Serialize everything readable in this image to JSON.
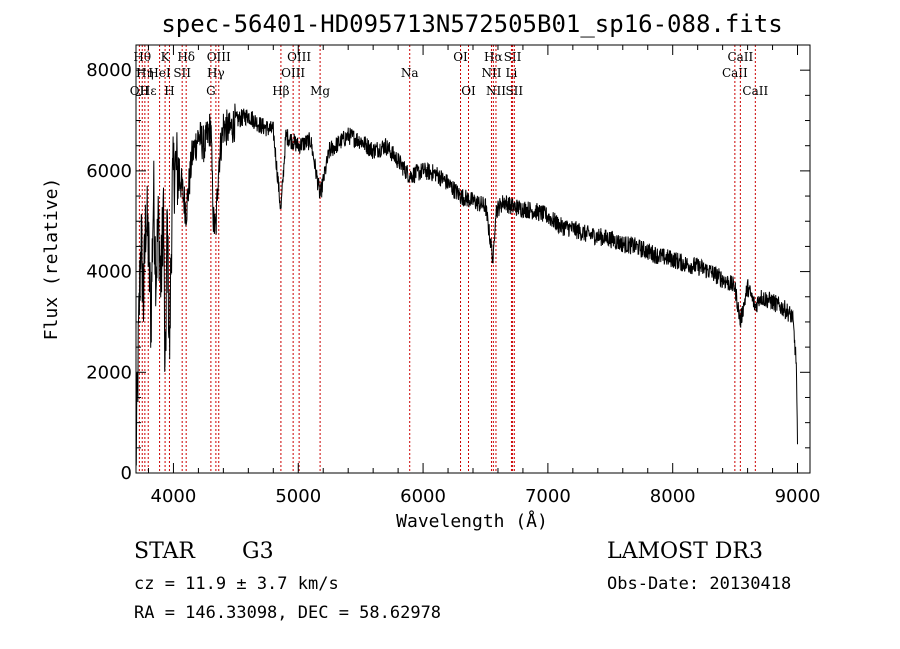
{
  "chart_data": {
    "type": "line",
    "title": "spec-56401-HD095713N572505B01_sp16-088.fits",
    "xlabel": "Wavelength (Å)",
    "ylabel": "Flux (relative)",
    "xlim": [
      3700,
      9100
    ],
    "ylim": [
      0,
      8500
    ],
    "x_ticks": [
      4000,
      5000,
      6000,
      7000,
      8000,
      9000
    ],
    "x_tick_labels": [
      "4000",
      "5000",
      "6000",
      "7000",
      "8000",
      "9000"
    ],
    "y_ticks": [
      0,
      2000,
      4000,
      6000,
      8000
    ],
    "y_tick_labels": [
      "0",
      "2000",
      "4000",
      "6000",
      "8000"
    ],
    "series": [
      {
        "name": "spectrum",
        "x": [
          3700,
          3720,
          3740,
          3760,
          3780,
          3800,
          3820,
          3840,
          3860,
          3880,
          3900,
          3920,
          3933,
          3950,
          3968,
          3990,
          4010,
          4050,
          4102,
          4150,
          4200,
          4250,
          4300,
          4320,
          4340,
          4360,
          4400,
          4450,
          4500,
          4600,
          4700,
          4800,
          4861,
          4900,
          5000,
          5100,
          5175,
          5250,
          5400,
          5500,
          5600,
          5700,
          5800,
          5893,
          6000,
          6100,
          6200,
          6300,
          6400,
          6500,
          6563,
          6580,
          6650,
          6700,
          6800,
          6900,
          7000,
          7100,
          7200,
          7300,
          7400,
          7500,
          7600,
          7700,
          7800,
          7900,
          8000,
          8100,
          8200,
          8300,
          8400,
          8498,
          8542,
          8600,
          8662,
          8700,
          8800,
          8900,
          8960,
          8990,
          9000
        ],
        "values": [
          200,
          2600,
          4800,
          3400,
          5200,
          4500,
          3000,
          5600,
          4000,
          5000,
          3700,
          5400,
          1500,
          5100,
          2300,
          5600,
          6100,
          5900,
          5200,
          6300,
          6700,
          6500,
          6900,
          5000,
          4800,
          6100,
          6900,
          6800,
          7000,
          7100,
          6900,
          6800,
          5200,
          6700,
          6500,
          6600,
          5500,
          6400,
          6700,
          6600,
          6400,
          6500,
          6200,
          5900,
          6000,
          5950,
          5750,
          5500,
          5400,
          5300,
          4200,
          5200,
          5400,
          5300,
          5250,
          5200,
          5100,
          4900,
          4850,
          4750,
          4700,
          4650,
          4550,
          4500,
          4400,
          4300,
          4250,
          4150,
          4100,
          4000,
          3850,
          3700,
          3000,
          3700,
          3300,
          3500,
          3400,
          3250,
          3100,
          2200,
          500
        ]
      }
    ],
    "lines": [
      {
        "wl": 3727,
        "label": "OII",
        "row": 3
      },
      {
        "wl": 3750,
        "label": "Hθ",
        "row": 1
      },
      {
        "wl": 3771,
        "label": "Hη",
        "row": 2
      },
      {
        "wl": 3798,
        "label": "Hε",
        "row": 3
      },
      {
        "wl": 3889,
        "label": "HeI",
        "row": 2
      },
      {
        "wl": 3933,
        "label": "K",
        "row": 1
      },
      {
        "wl": 3968,
        "label": "H",
        "row": 3
      },
      {
        "wl": 4070,
        "label": "SII",
        "row": 2
      },
      {
        "wl": 4102,
        "label": "Hδ",
        "row": 1
      },
      {
        "wl": 4300,
        "label": "G",
        "row": 3
      },
      {
        "wl": 4340,
        "label": "Hγ",
        "row": 2
      },
      {
        "wl": 4363,
        "label": "OIII",
        "row": 1
      },
      {
        "wl": 4861,
        "label": "Hβ",
        "row": 3
      },
      {
        "wl": 4959,
        "label": "OIII",
        "row": 2
      },
      {
        "wl": 5007,
        "label": "OIII",
        "row": 1
      },
      {
        "wl": 5175,
        "label": "Mg",
        "row": 3
      },
      {
        "wl": 5893,
        "label": "Na",
        "row": 2
      },
      {
        "wl": 6300,
        "label": "OI",
        "row": 1
      },
      {
        "wl": 6364,
        "label": "OI",
        "row": 3
      },
      {
        "wl": 6548,
        "label": "NII",
        "row": 2
      },
      {
        "wl": 6563,
        "label": "Hα",
        "row": 1
      },
      {
        "wl": 6584,
        "label": "NII",
        "row": 3
      },
      {
        "wl": 6708,
        "label": "Li",
        "row": 2
      },
      {
        "wl": 6717,
        "label": "SII",
        "row": 1
      },
      {
        "wl": 6731,
        "label": "SII",
        "row": 3
      },
      {
        "wl": 8498,
        "label": "CaII",
        "row": 2
      },
      {
        "wl": 8542,
        "label": "CaII",
        "row": 1
      },
      {
        "wl": 8662,
        "label": "CaII",
        "row": 3
      }
    ],
    "line_color": "#cc0000"
  },
  "info": {
    "class_label": "STAR",
    "subclass": "G3",
    "survey": "LAMOST DR3",
    "cz": "cz = 11.9 ± 3.7 km/s",
    "obs_date": "Obs-Date: 20130418",
    "radec": "RA = 146.33098, DEC =  58.62978"
  }
}
